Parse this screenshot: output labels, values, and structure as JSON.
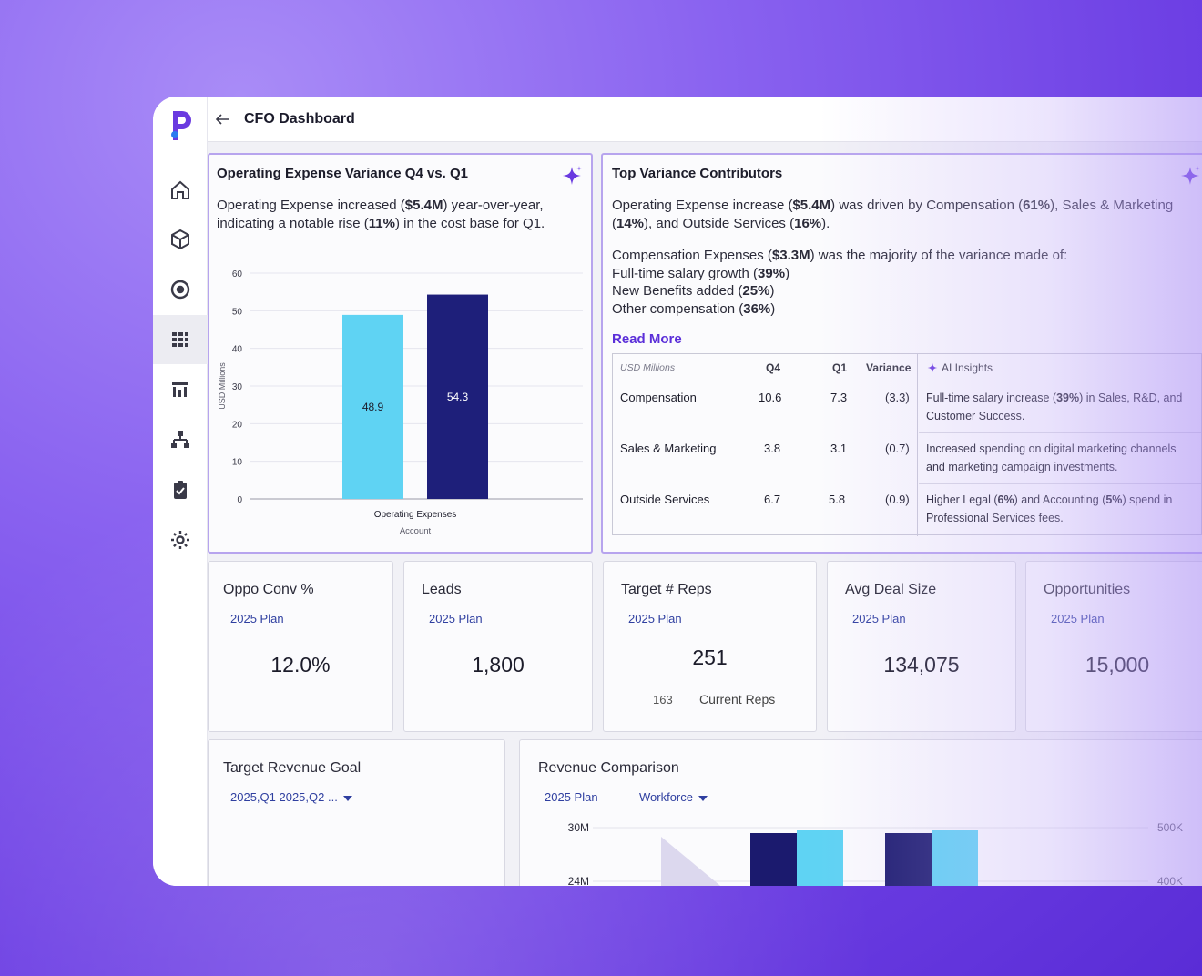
{
  "header": {
    "title": "CFO Dashboard"
  },
  "sidebar": {
    "items": [
      {
        "icon": "home-icon"
      },
      {
        "icon": "cube-icon"
      },
      {
        "icon": "target-icon"
      },
      {
        "icon": "grid-icon",
        "active": true
      },
      {
        "icon": "bar-report-icon"
      },
      {
        "icon": "hierarchy-icon"
      },
      {
        "icon": "clipboard-check-icon"
      },
      {
        "icon": "gear-icon"
      }
    ]
  },
  "variance_card": {
    "title": "Operating Expense Variance Q4 vs. Q1",
    "desc_parts": [
      "Operating Expense increased (",
      "$5.4M",
      ") year-over-year, indicating a notable rise (",
      "11%",
      ") in the cost base for Q1."
    ]
  },
  "chart_data": [
    {
      "type": "bar",
      "categories": [
        "Operating Expenses"
      ],
      "series": [
        {
          "values": [
            48.9
          ],
          "color": "#5fd3f3"
        },
        {
          "values": [
            54.3
          ],
          "color": "#1e1f7a"
        }
      ],
      "data_labels": [
        "48.9",
        "54.3"
      ],
      "xlabel": "Operating Expenses",
      "xsublabel": "Account",
      "ylabel": "USD Millions",
      "yticks": [
        "0",
        "10",
        "20",
        "30",
        "40",
        "50",
        "60"
      ],
      "ylim": [
        0,
        60
      ],
      "grid": true
    },
    {
      "type": "bar",
      "title": "Revenue Comparison",
      "yticks_left": [
        "30M",
        "24M"
      ],
      "yticks_right": [
        "500K",
        "400K"
      ],
      "colors": [
        "#1b1a6e",
        "#5fd3f3"
      ]
    }
  ],
  "contributors_card": {
    "title": "Top Variance Contributors",
    "p1_parts": [
      "Operating Expense increase (",
      "$5.4M",
      ") was driven by Compensation (",
      "61%",
      "), Sales & Marketing (",
      "14%",
      "), and Outside Services (",
      "16%",
      ")."
    ],
    "p2_parts": [
      "Compensation Expenses (",
      "$3.3M",
      ") was the majority of the variance made of:"
    ],
    "lines": [
      {
        "text": "Full-time salary growth (",
        "bold": "39%",
        "end": ")"
      },
      {
        "text": "New Benefits added (",
        "bold": "25%",
        "end": ")"
      },
      {
        "text": "Other compensation (",
        "bold": "36%",
        "end": ")"
      }
    ],
    "read_more": "Read More",
    "table": {
      "headers": [
        "USD Millions",
        "Q4",
        "Q1",
        "Variance",
        "AI Insights"
      ],
      "rows": [
        {
          "name": "Compensation",
          "q4": "10.6",
          "q1": "7.3",
          "var": "(3.3)",
          "insight_parts": [
            "Full-time salary increase (",
            "39%",
            ") in Sales, R&D, and Customer Success."
          ]
        },
        {
          "name": "Sales & Marketing",
          "q4": "3.8",
          "q1": "3.1",
          "var": "(0.7)",
          "insight_parts": [
            "Increased spending on digital marketing channels and marketing campaign investments.",
            "",
            ""
          ]
        },
        {
          "name": "Outside Services",
          "q4": "6.7",
          "q1": "5.8",
          "var": "(0.9)",
          "insight_parts": [
            "Higher Legal (",
            "6%",
            ") and Accounting (",
            "5%",
            ") spend in Professional Services fees."
          ]
        }
      ]
    }
  },
  "kpis": [
    {
      "title": "Oppo Conv %",
      "sub": "2025 Plan",
      "value": "12.0%"
    },
    {
      "title": "Leads",
      "sub": "2025 Plan",
      "value": "1,800"
    },
    {
      "title": "Target # Reps",
      "sub": "2025 Plan",
      "value": "251",
      "extra_num": "163",
      "extra_label": "Current Reps"
    },
    {
      "title": "Avg Deal Size",
      "sub": "2025 Plan",
      "value": "134,075"
    },
    {
      "title": "Opportunities",
      "sub": "2025 Plan",
      "value": "15,000"
    }
  ],
  "revenue_goal": {
    "title": "Target Revenue Goal",
    "filter": "2025,Q1 2025,Q2 ..."
  },
  "revenue_comp": {
    "title": "Revenue Comparison",
    "filter1": "2025 Plan",
    "filter2": "Workforce"
  }
}
